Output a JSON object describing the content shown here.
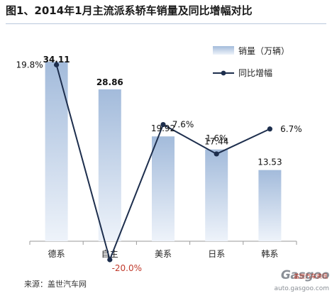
{
  "title": "图1、2014年1月主流派系轿车销量及同比增幅对比",
  "source": "来源：盖世汽车网",
  "watermark": {
    "brand": "Gasgoo",
    "cn": "盖世汽车资讯",
    "url": "auto.gasgoo.com"
  },
  "colors": {
    "bar_top": "#a3bbdb",
    "bar_bottom": "#eef3fa",
    "line": "#1d2e4d",
    "axis": "#9a9a9a",
    "neg_label": "#c0392b"
  },
  "chart_data": {
    "type": "bar",
    "categories": [
      "德系",
      "自主",
      "美系",
      "日系",
      "韩系"
    ],
    "series": [
      {
        "name": "销量（万辆）",
        "type": "bar",
        "values": [
          34.11,
          28.86,
          19.92,
          17.44,
          13.53
        ],
        "labels": [
          "34.11",
          "28.86",
          "19.92",
          "17.44",
          "13.53"
        ]
      },
      {
        "name": "同比增幅",
        "type": "line",
        "values": [
          19.8,
          -20.0,
          7.6,
          1.6,
          6.7
        ],
        "labels": [
          "19.8%",
          "-20.0%",
          "7.6%",
          "1.6%",
          "6.7%"
        ]
      }
    ],
    "bold_labels": [
      true,
      true,
      false,
      false,
      false
    ],
    "legend": "top-right",
    "grid": false
  }
}
